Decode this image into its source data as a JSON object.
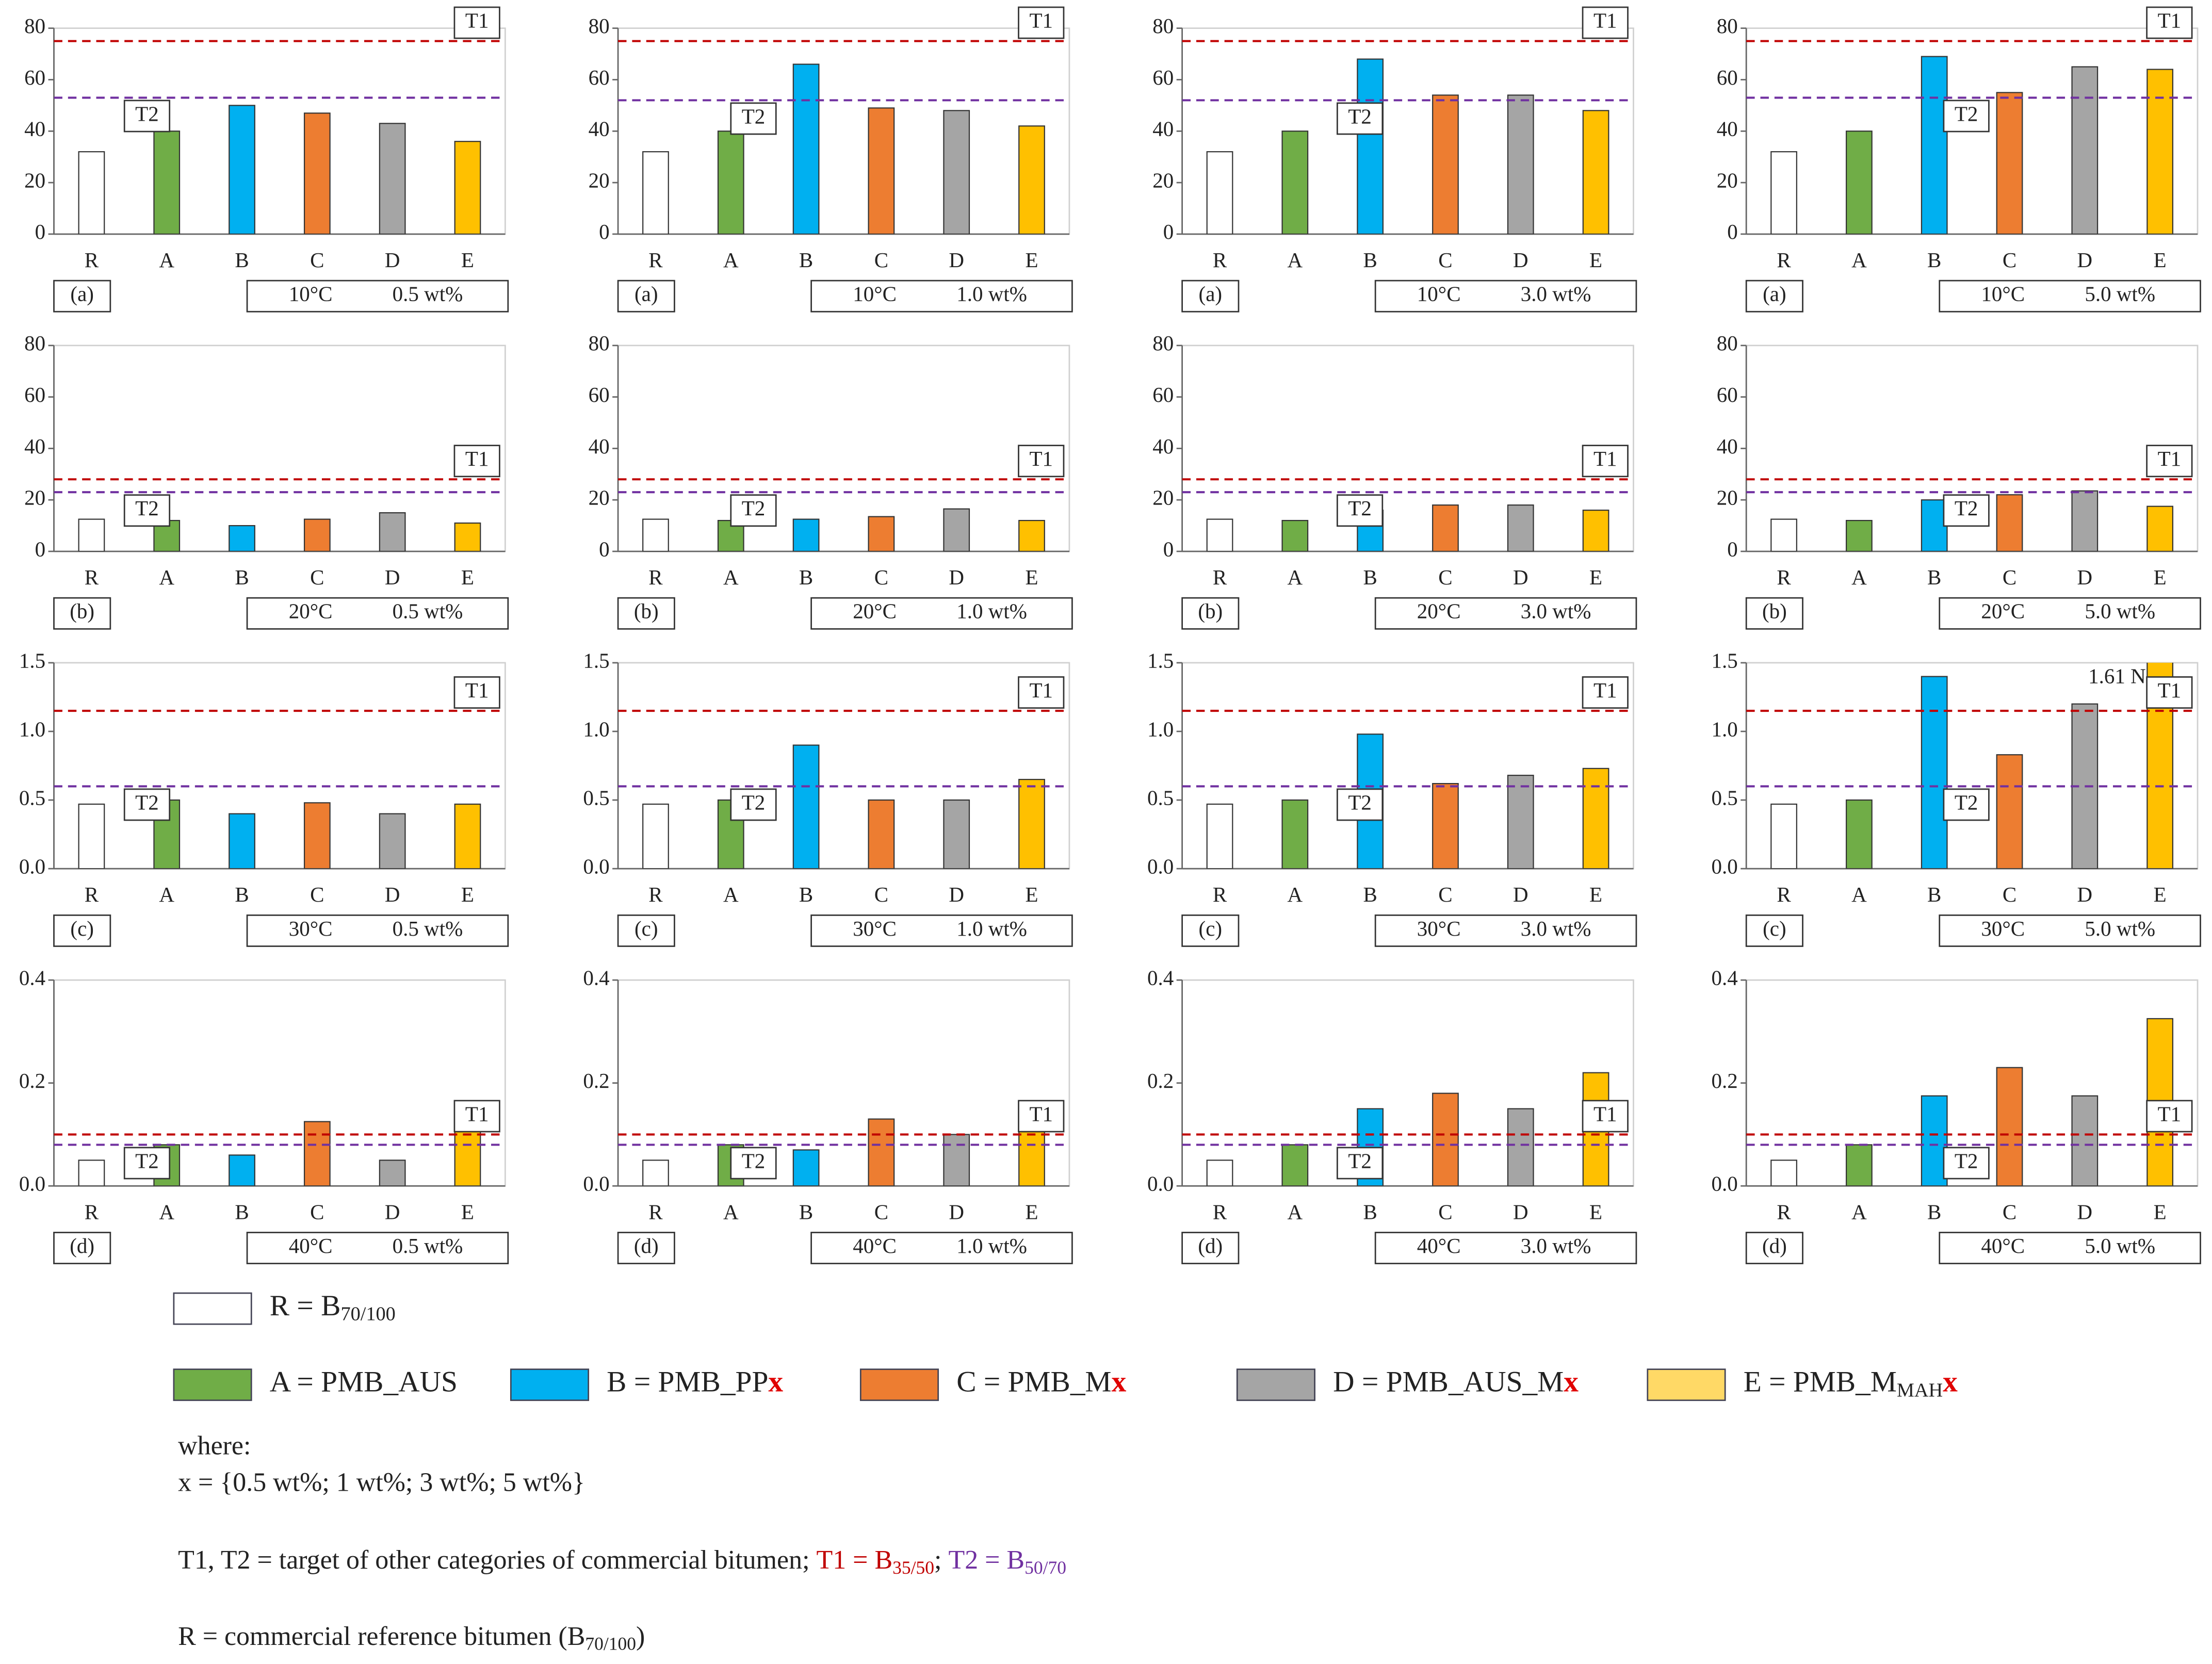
{
  "chart_data": [
    {
      "type": "bar",
      "label": "(a)",
      "temperature": "10°C",
      "content": "0.5 wt%",
      "categories": [
        "R",
        "A",
        "B",
        "C",
        "D",
        "E"
      ],
      "values": [
        32,
        40,
        50,
        47,
        43,
        36
      ],
      "colors": [
        "#ffffff",
        "#70ad47",
        "#00b0f0",
        "#ed7d31",
        "#a5a5a5",
        "#ffc000"
      ],
      "ylim": [
        0,
        80
      ],
      "yticks": [
        0,
        20,
        40,
        60,
        80
      ],
      "reference_lines": [
        {
          "name": "T1",
          "value": 75,
          "color": "#c00000"
        },
        {
          "name": "T2",
          "value": 53,
          "color": "#7030a0"
        }
      ]
    },
    {
      "type": "bar",
      "label": "(a)",
      "temperature": "10°C",
      "content": "1.0 wt%",
      "categories": [
        "R",
        "A",
        "B",
        "C",
        "D",
        "E"
      ],
      "values": [
        32,
        40,
        66,
        49,
        48,
        42
      ],
      "colors": [
        "#ffffff",
        "#70ad47",
        "#00b0f0",
        "#ed7d31",
        "#a5a5a5",
        "#ffc000"
      ],
      "ylim": [
        0,
        80
      ],
      "yticks": [
        0,
        20,
        40,
        60,
        80
      ],
      "reference_lines": [
        {
          "name": "T1",
          "value": 75,
          "color": "#c00000"
        },
        {
          "name": "T2",
          "value": 52,
          "color": "#7030a0"
        }
      ]
    },
    {
      "type": "bar",
      "label": "(a)",
      "temperature": "10°C",
      "content": "3.0 wt%",
      "categories": [
        "R",
        "A",
        "B",
        "C",
        "D",
        "E"
      ],
      "values": [
        32,
        40,
        68,
        54,
        54,
        48
      ],
      "colors": [
        "#ffffff",
        "#70ad47",
        "#00b0f0",
        "#ed7d31",
        "#a5a5a5",
        "#ffc000"
      ],
      "ylim": [
        0,
        80
      ],
      "yticks": [
        0,
        20,
        40,
        60,
        80
      ],
      "reference_lines": [
        {
          "name": "T1",
          "value": 75,
          "color": "#c00000"
        },
        {
          "name": "T2",
          "value": 52,
          "color": "#7030a0"
        }
      ]
    },
    {
      "type": "bar",
      "label": "(a)",
      "temperature": "10°C",
      "content": "5.0 wt%",
      "categories": [
        "R",
        "A",
        "B",
        "C",
        "D",
        "E"
      ],
      "values": [
        32,
        40,
        69,
        55,
        65,
        64
      ],
      "colors": [
        "#ffffff",
        "#70ad47",
        "#00b0f0",
        "#ed7d31",
        "#a5a5a5",
        "#ffc000"
      ],
      "ylim": [
        0,
        80
      ],
      "yticks": [
        0,
        20,
        40,
        60,
        80
      ],
      "reference_lines": [
        {
          "name": "T1",
          "value": 75,
          "color": "#c00000"
        },
        {
          "name": "T2",
          "value": 53,
          "color": "#7030a0"
        }
      ]
    },
    {
      "type": "bar",
      "label": "(b)",
      "temperature": "20°C",
      "content": "0.5 wt%",
      "categories": [
        "R",
        "A",
        "B",
        "C",
        "D",
        "E"
      ],
      "values": [
        12.5,
        12,
        10,
        12.5,
        15,
        11
      ],
      "colors": [
        "#ffffff",
        "#70ad47",
        "#00b0f0",
        "#ed7d31",
        "#a5a5a5",
        "#ffc000"
      ],
      "ylim": [
        0,
        80
      ],
      "yticks": [
        0,
        20,
        40,
        60,
        80
      ],
      "reference_lines": [
        {
          "name": "T1",
          "value": 28,
          "color": "#c00000"
        },
        {
          "name": "T2",
          "value": 23,
          "color": "#7030a0"
        }
      ]
    },
    {
      "type": "bar",
      "label": "(b)",
      "temperature": "20°C",
      "content": "1.0 wt%",
      "categories": [
        "R",
        "A",
        "B",
        "C",
        "D",
        "E"
      ],
      "values": [
        12.5,
        12,
        12.5,
        13.5,
        16.5,
        12
      ],
      "colors": [
        "#ffffff",
        "#70ad47",
        "#00b0f0",
        "#ed7d31",
        "#a5a5a5",
        "#ffc000"
      ],
      "ylim": [
        0,
        80
      ],
      "yticks": [
        0,
        20,
        40,
        60,
        80
      ],
      "reference_lines": [
        {
          "name": "T1",
          "value": 28,
          "color": "#c00000"
        },
        {
          "name": "T2",
          "value": 23,
          "color": "#7030a0"
        }
      ]
    },
    {
      "type": "bar",
      "label": "(b)",
      "temperature": "20°C",
      "content": "3.0 wt%",
      "categories": [
        "R",
        "A",
        "B",
        "C",
        "D",
        "E"
      ],
      "values": [
        12.5,
        12,
        16,
        18,
        18,
        16
      ],
      "colors": [
        "#ffffff",
        "#70ad47",
        "#00b0f0",
        "#ed7d31",
        "#a5a5a5",
        "#ffc000"
      ],
      "ylim": [
        0,
        80
      ],
      "yticks": [
        0,
        20,
        40,
        60,
        80
      ],
      "reference_lines": [
        {
          "name": "T1",
          "value": 28,
          "color": "#c00000"
        },
        {
          "name": "T2",
          "value": 23,
          "color": "#7030a0"
        }
      ]
    },
    {
      "type": "bar",
      "label": "(b)",
      "temperature": "20°C",
      "content": "5.0 wt%",
      "categories": [
        "R",
        "A",
        "B",
        "C",
        "D",
        "E"
      ],
      "values": [
        12.5,
        12,
        20,
        22,
        23.5,
        17.5
      ],
      "colors": [
        "#ffffff",
        "#70ad47",
        "#00b0f0",
        "#ed7d31",
        "#a5a5a5",
        "#ffc000"
      ],
      "ylim": [
        0,
        80
      ],
      "yticks": [
        0,
        20,
        40,
        60,
        80
      ],
      "reference_lines": [
        {
          "name": "T1",
          "value": 28,
          "color": "#c00000"
        },
        {
          "name": "T2",
          "value": 23,
          "color": "#7030a0"
        }
      ]
    },
    {
      "type": "bar",
      "label": "(c)",
      "temperature": "30°C",
      "content": "0.5 wt%",
      "categories": [
        "R",
        "A",
        "B",
        "C",
        "D",
        "E"
      ],
      "values": [
        0.47,
        0.5,
        0.4,
        0.48,
        0.4,
        0.47
      ],
      "colors": [
        "#ffffff",
        "#70ad47",
        "#00b0f0",
        "#ed7d31",
        "#a5a5a5",
        "#ffc000"
      ],
      "ylim": [
        0,
        1.5
      ],
      "yticks": [
        {
          "value": 0,
          "label": "0.0"
        },
        0.5,
        {
          "value": 1,
          "label": "1.0"
        },
        1.5
      ],
      "reference_lines": [
        {
          "name": "T1",
          "value": 1.15,
          "color": "#c00000"
        },
        {
          "name": "T2",
          "value": 0.6,
          "color": "#7030a0"
        }
      ]
    },
    {
      "type": "bar",
      "label": "(c)",
      "temperature": "30°C",
      "content": "1.0 wt%",
      "categories": [
        "R",
        "A",
        "B",
        "C",
        "D",
        "E"
      ],
      "values": [
        0.47,
        0.5,
        0.9,
        0.5,
        0.5,
        0.65
      ],
      "colors": [
        "#ffffff",
        "#70ad47",
        "#00b0f0",
        "#ed7d31",
        "#a5a5a5",
        "#ffc000"
      ],
      "ylim": [
        0,
        1.5
      ],
      "yticks": [
        {
          "value": 0,
          "label": "0.0"
        },
        0.5,
        {
          "value": 1,
          "label": "1.0"
        },
        1.5
      ],
      "reference_lines": [
        {
          "name": "T1",
          "value": 1.15,
          "color": "#c00000"
        },
        {
          "name": "T2",
          "value": 0.6,
          "color": "#7030a0"
        }
      ]
    },
    {
      "type": "bar",
      "label": "(c)",
      "temperature": "30°C",
      "content": "3.0 wt%",
      "categories": [
        "R",
        "A",
        "B",
        "C",
        "D",
        "E"
      ],
      "values": [
        0.47,
        0.5,
        0.98,
        0.62,
        0.68,
        0.73
      ],
      "colors": [
        "#ffffff",
        "#70ad47",
        "#00b0f0",
        "#ed7d31",
        "#a5a5a5",
        "#ffc000"
      ],
      "ylim": [
        0,
        1.5
      ],
      "yticks": [
        {
          "value": 0,
          "label": "0.0"
        },
        0.5,
        {
          "value": 1,
          "label": "1.0"
        },
        1.5
      ],
      "reference_lines": [
        {
          "name": "T1",
          "value": 1.15,
          "color": "#c00000"
        },
        {
          "name": "T2",
          "value": 0.6,
          "color": "#7030a0"
        }
      ]
    },
    {
      "type": "bar",
      "label": "(c)",
      "temperature": "30°C",
      "content": "5.0 wt%",
      "categories": [
        "R",
        "A",
        "B",
        "C",
        "D",
        "E"
      ],
      "values": [
        0.47,
        0.5,
        1.4,
        0.83,
        1.2,
        1.61
      ],
      "value_labels": [
        null,
        null,
        null,
        null,
        null,
        "1.61 N"
      ],
      "colors": [
        "#ffffff",
        "#70ad47",
        "#00b0f0",
        "#ed7d31",
        "#a5a5a5",
        "#ffc000"
      ],
      "ylim": [
        0,
        1.5
      ],
      "yticks": [
        {
          "value": 0,
          "label": "0.0"
        },
        0.5,
        {
          "value": 1,
          "label": "1.0"
        },
        1.5
      ],
      "reference_lines": [
        {
          "name": "T1",
          "value": 1.15,
          "color": "#c00000"
        },
        {
          "name": "T2",
          "value": 0.6,
          "color": "#7030a0"
        }
      ]
    },
    {
      "type": "bar",
      "label": "(d)",
      "temperature": "40°C",
      "content": "0.5 wt%",
      "categories": [
        "R",
        "A",
        "B",
        "C",
        "D",
        "E"
      ],
      "values": [
        0.05,
        0.08,
        0.06,
        0.125,
        0.05,
        0.14
      ],
      "colors": [
        "#ffffff",
        "#70ad47",
        "#00b0f0",
        "#ed7d31",
        "#a5a5a5",
        "#ffc000"
      ],
      "ylim": [
        0,
        0.4
      ],
      "yticks": [
        {
          "value": 0,
          "label": "0.0"
        },
        0.2,
        0.4
      ],
      "reference_lines": [
        {
          "name": "T1",
          "value": 0.1,
          "color": "#c00000"
        },
        {
          "name": "T2",
          "value": 0.08,
          "color": "#7030a0"
        }
      ]
    },
    {
      "type": "bar",
      "label": "(d)",
      "temperature": "40°C",
      "content": "1.0 wt%",
      "categories": [
        "R",
        "A",
        "B",
        "C",
        "D",
        "E"
      ],
      "values": [
        0.05,
        0.08,
        0.07,
        0.13,
        0.1,
        0.16
      ],
      "colors": [
        "#ffffff",
        "#70ad47",
        "#00b0f0",
        "#ed7d31",
        "#a5a5a5",
        "#ffc000"
      ],
      "ylim": [
        0,
        0.4
      ],
      "yticks": [
        {
          "value": 0,
          "label": "0.0"
        },
        0.2,
        0.4
      ],
      "reference_lines": [
        {
          "name": "T1",
          "value": 0.1,
          "color": "#c00000"
        },
        {
          "name": "T2",
          "value": 0.08,
          "color": "#7030a0"
        }
      ]
    },
    {
      "type": "bar",
      "label": "(d)",
      "temperature": "40°C",
      "content": "3.0 wt%",
      "categories": [
        "R",
        "A",
        "B",
        "C",
        "D",
        "E"
      ],
      "values": [
        0.05,
        0.08,
        0.15,
        0.18,
        0.15,
        0.22
      ],
      "colors": [
        "#ffffff",
        "#70ad47",
        "#00b0f0",
        "#ed7d31",
        "#a5a5a5",
        "#ffc000"
      ],
      "ylim": [
        0,
        0.4
      ],
      "yticks": [
        {
          "value": 0,
          "label": "0.0"
        },
        0.2,
        0.4
      ],
      "reference_lines": [
        {
          "name": "T1",
          "value": 0.1,
          "color": "#c00000"
        },
        {
          "name": "T2",
          "value": 0.08,
          "color": "#7030a0"
        }
      ]
    },
    {
      "type": "bar",
      "label": "(d)",
      "temperature": "40°C",
      "content": "5.0 wt%",
      "categories": [
        "R",
        "A",
        "B",
        "C",
        "D",
        "E"
      ],
      "values": [
        0.05,
        0.08,
        0.175,
        0.23,
        0.175,
        0.325
      ],
      "colors": [
        "#ffffff",
        "#70ad47",
        "#00b0f0",
        "#ed7d31",
        "#a5a5a5",
        "#ffc000"
      ],
      "ylim": [
        0,
        0.4
      ],
      "yticks": [
        {
          "value": 0,
          "label": "0.0"
        },
        0.2,
        0.4
      ],
      "reference_lines": [
        {
          "name": "T1",
          "value": 0.1,
          "color": "#c00000"
        },
        {
          "name": "T2",
          "value": 0.08,
          "color": "#7030a0"
        }
      ]
    }
  ],
  "legend": [
    {
      "color": "#ffffff",
      "text": "R = B",
      "subscript": "70/100"
    },
    {
      "color": "#70ad47",
      "text": "A = PMB_AUS"
    },
    {
      "color": "#00b0f0",
      "text": "B = PMB_PP",
      "suffix": "x"
    },
    {
      "color": "#ed7d31",
      "text": "C = PMB_M",
      "suffix": "x"
    },
    {
      "color": "#a5a5a5",
      "text": "D = PMB_AUS_M",
      "suffix": "x"
    },
    {
      "color": "#ffd966",
      "text": "E = PMB_M",
      "subscript": "MAH",
      "suffix": "x"
    }
  ],
  "notes": {
    "where": "where:",
    "x_definition": "x = {0.5 wt%; 1 wt%; 3 wt%; 5 wt%}",
    "targets": {
      "text": "T1, T2 = target of other categories of commercial bitumen; ",
      "t1": "T1 = B",
      "t1_sub": "35/50",
      "separator": "; ",
      "t2": "T2 = B",
      "t2_sub": "50/70"
    },
    "reference": {
      "text": "R = commercial reference bitumen (B",
      "sub": "70/100",
      "end": ")"
    }
  }
}
